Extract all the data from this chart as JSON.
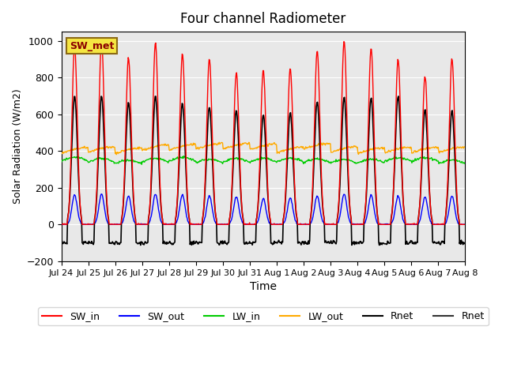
{
  "title": "Four channel Radiometer",
  "xlabel": "Time",
  "ylabel": "Solar Radiation (W/m2)",
  "ylim": [
    -200,
    1050
  ],
  "xlim_days": 15.5,
  "background_color": "#e8e8e8",
  "tick_labels": [
    "Jul 24",
    "Jul 25",
    "Jul 26",
    "Jul 27",
    "Jul 28",
    "Jul 29",
    "Jul 30",
    "Jul 31",
    "Aug 1",
    "Aug 2",
    "Aug 3",
    "Aug 4",
    "Aug 5",
    "Aug 6",
    "Aug 7",
    "Aug 8"
  ],
  "station_label": "SW_met",
  "legend": [
    "SW_in",
    "SW_out",
    "LW_in",
    "LW_out",
    "Rnet",
    "Rnet"
  ],
  "colors": {
    "SW_in": "#ff0000",
    "SW_out": "#0000ff",
    "LW_in": "#00cc00",
    "LW_out": "#ffaa00",
    "Rnet_black": "#000000",
    "Rnet_dark": "#333333"
  },
  "n_days": 15,
  "day_start": 0,
  "SW_in_peaks": [
    970,
    1000,
    910,
    990,
    930,
    900,
    830,
    840,
    850,
    950,
    1000,
    960,
    900,
    810,
    900
  ],
  "SW_out_peaks": [
    160,
    165,
    155,
    165,
    160,
    155,
    150,
    140,
    145,
    155,
    165,
    160,
    155,
    150,
    155
  ],
  "LW_in_base": 340,
  "LW_in_variation": 20,
  "LW_out_base": 400,
  "LW_out_variation": 30,
  "Rnet_peaks": [
    700,
    700,
    665,
    700,
    660,
    640,
    620,
    600,
    610,
    670,
    695,
    690,
    700,
    625,
    620
  ],
  "Rnet_night": -100,
  "yticks": [
    -200,
    0,
    200,
    400,
    600,
    800,
    1000
  ]
}
